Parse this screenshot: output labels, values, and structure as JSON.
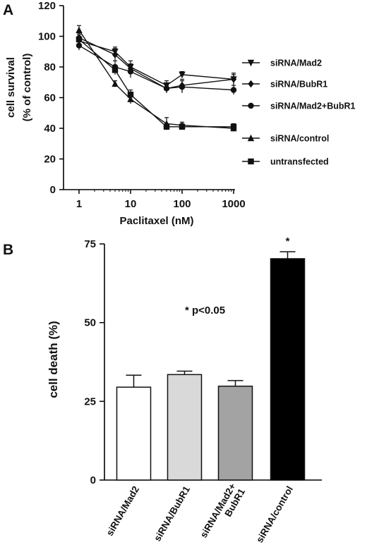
{
  "chart_data": [
    {
      "panel": "A",
      "type": "line",
      "xlabel": "Paclitaxel (nM)",
      "ylabel": [
        "cell survival",
        "(% of control)"
      ],
      "xscale": "log",
      "xlim": [
        1,
        1000
      ],
      "ylim": [
        0,
        120
      ],
      "xticks": [
        {
          "value": 1,
          "label": "1"
        },
        {
          "value": 10,
          "label": "10"
        },
        {
          "value": 100,
          "label": "100"
        },
        {
          "value": 1000,
          "label": "1000"
        }
      ],
      "yticks": [
        0,
        20,
        40,
        60,
        80,
        100,
        120
      ],
      "x": [
        1,
        5,
        10,
        50,
        100,
        1000
      ],
      "legend_position": "right",
      "series": [
        {
          "name": "siRNA/Mad2",
          "marker": "triangle-down",
          "values": [
            97,
            90,
            80,
            68,
            75,
            72
          ],
          "err": [
            3,
            3,
            4,
            3,
            2,
            3
          ]
        },
        {
          "name": "siRNA/BubR1",
          "marker": "diamond",
          "values": [
            99,
            88,
            79,
            66,
            68,
            72
          ],
          "err": [
            3,
            4,
            3,
            2,
            4,
            4
          ]
        },
        {
          "name": "siRNA/Mad2+BubR1",
          "marker": "circle",
          "values": [
            94,
            80,
            77,
            66,
            67,
            65
          ],
          "err": [
            3,
            4,
            4,
            3,
            4,
            3
          ]
        },
        {
          "name": "siRNA/control",
          "marker": "triangle-up",
          "values": [
            104,
            69,
            59,
            43,
            42,
            40
          ],
          "err": [
            3,
            2,
            3,
            4,
            2,
            2
          ]
        },
        {
          "name": "untransfected",
          "marker": "square",
          "values": [
            98,
            78,
            62,
            41,
            41,
            41
          ],
          "err": [
            3,
            3,
            3,
            2,
            2,
            2
          ]
        }
      ]
    },
    {
      "panel": "B",
      "type": "bar",
      "ylabel": "cell death (%)",
      "ylim": [
        0,
        75
      ],
      "yticks": [
        0,
        25,
        50,
        75
      ],
      "categories": [
        {
          "lines": [
            "siRNA/Mad2"
          ]
        },
        {
          "lines": [
            "siRNA/BubR1"
          ]
        },
        {
          "lines": [
            "siRNA/Mad2+",
            "BubR1"
          ]
        },
        {
          "lines": [
            "siRNA/control"
          ]
        }
      ],
      "values": [
        29.5,
        33.5,
        29.8,
        70.3
      ],
      "errors": [
        3.8,
        1.1,
        1.8,
        2.2
      ],
      "colors": [
        "#ffffff",
        "#d9d9d9",
        "#a3a3a3",
        "#000000"
      ],
      "significance_markers": [
        "",
        "",
        "",
        "*"
      ],
      "annotation": "* p<0.05"
    }
  ]
}
